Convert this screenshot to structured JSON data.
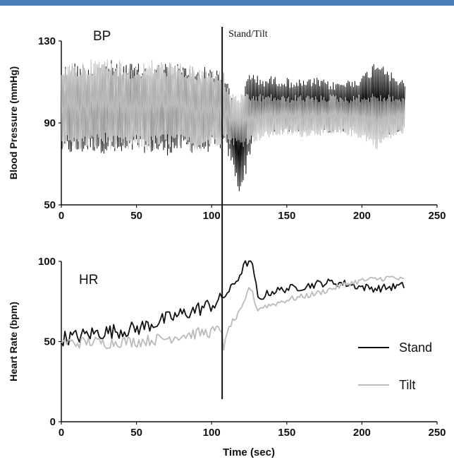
{
  "chart_data": [
    {
      "type": "line",
      "panel_label": "BP",
      "ylabel": "Blood Pressure (mmHg)",
      "xlabel": "",
      "xlim": [
        0,
        250
      ],
      "ylim": [
        50,
        130
      ],
      "xticks": [
        "0",
        "50",
        "100",
        "150",
        "200",
        "250"
      ],
      "yticks": [
        "50",
        "90",
        "130"
      ],
      "annotation": "Stand/Tilt",
      "event_x": 107,
      "series": [
        {
          "name": "Stand",
          "color": "#111111",
          "kind": "oscillating_band",
          "x": [
            0,
            10,
            20,
            30,
            40,
            50,
            60,
            70,
            80,
            90,
            100,
            105,
            108,
            110,
            113,
            116,
            118,
            120,
            122,
            125,
            128,
            132,
            140,
            150,
            160,
            170,
            180,
            190,
            200,
            205,
            210,
            215,
            220,
            225,
            229
          ],
          "upper": [
            118,
            120,
            119,
            121,
            120,
            119,
            118,
            120,
            119,
            118,
            117,
            118,
            116,
            112,
            105,
            98,
            95,
            100,
            108,
            118,
            115,
            112,
            113,
            112,
            111,
            112,
            110,
            111,
            113,
            117,
            122,
            120,
            114,
            112,
            110
          ],
          "lower": [
            75,
            74,
            76,
            75,
            73,
            76,
            75,
            74,
            76,
            75,
            76,
            77,
            78,
            75,
            70,
            62,
            56,
            57,
            62,
            72,
            82,
            85,
            86,
            85,
            86,
            86,
            85,
            86,
            86,
            84,
            82,
            83,
            85,
            86,
            88
          ]
        },
        {
          "name": "Tilt",
          "color": "#bbbbbb",
          "kind": "oscillating_band",
          "x": [
            0,
            10,
            20,
            30,
            40,
            50,
            60,
            70,
            80,
            90,
            100,
            105,
            108,
            110,
            115,
            120,
            125,
            130,
            140,
            150,
            160,
            170,
            180,
            190,
            200,
            205,
            210,
            215,
            220,
            225,
            229
          ],
          "upper": [
            120,
            119,
            121,
            122,
            120,
            118,
            121,
            120,
            119,
            117,
            116,
            117,
            115,
            108,
            104,
            104,
            104,
            104,
            104,
            103,
            104,
            103,
            104,
            103,
            104,
            104,
            105,
            104,
            104,
            103,
            103
          ],
          "lower": [
            78,
            76,
            77,
            78,
            75,
            77,
            76,
            78,
            77,
            76,
            78,
            79,
            80,
            80,
            79,
            78,
            80,
            81,
            83,
            84,
            83,
            84,
            83,
            84,
            82,
            80,
            77,
            80,
            82,
            84,
            85
          ]
        }
      ]
    },
    {
      "type": "line",
      "panel_label": "HR",
      "ylabel": "Heart Rate (bpm)",
      "xlabel": "Time (sec)",
      "xlim": [
        0,
        250
      ],
      "ylim": [
        0,
        100
      ],
      "xticks": [
        "0",
        "50",
        "100",
        "150",
        "200",
        "250"
      ],
      "yticks": [
        "0",
        "50",
        "100"
      ],
      "legend_position": "bottom-right",
      "event_x": 107,
      "series": [
        {
          "name": "Stand",
          "color": "#111111",
          "x": [
            0,
            10,
            20,
            30,
            40,
            50,
            60,
            70,
            80,
            90,
            100,
            105,
            108,
            112,
            118,
            122,
            125,
            128,
            131,
            135,
            140,
            150,
            160,
            170,
            180,
            190,
            200,
            210,
            220,
            229
          ],
          "y": [
            52,
            53,
            55,
            56,
            57,
            58,
            61,
            64,
            67,
            70,
            73,
            75,
            78,
            82,
            90,
            98,
            100,
            95,
            75,
            79,
            81,
            83,
            84,
            86,
            87,
            86,
            84,
            83,
            84,
            85
          ],
          "jitter": 4
        },
        {
          "name": "Tilt",
          "color": "#bbbbbb",
          "x": [
            0,
            10,
            20,
            30,
            40,
            50,
            60,
            70,
            80,
            90,
            100,
            105,
            107,
            108,
            112,
            118,
            122,
            125,
            128,
            130,
            135,
            140,
            150,
            160,
            170,
            180,
            190,
            200,
            210,
            220,
            229
          ],
          "y": [
            50,
            49,
            50,
            49,
            50,
            50,
            51,
            52,
            54,
            55,
            56,
            57,
            58,
            46,
            60,
            67,
            74,
            85,
            78,
            70,
            72,
            73,
            76,
            78,
            80,
            83,
            86,
            88,
            89,
            90,
            88
          ],
          "jitter": 3
        }
      ]
    }
  ]
}
